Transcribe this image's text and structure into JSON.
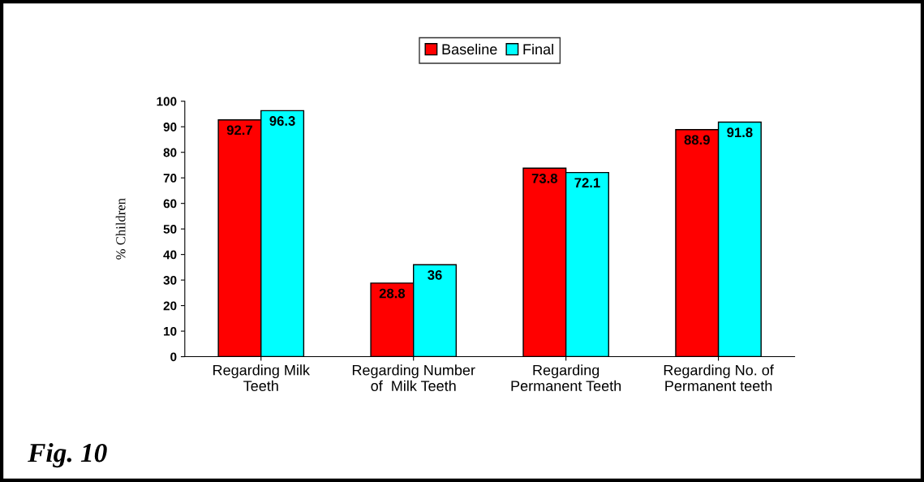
{
  "chart_data": {
    "type": "bar",
    "ylabel": "% Children",
    "categories": [
      "Regarding Milk\nTeeth",
      "Regarding Number\nof  Milk Teeth",
      "Regarding\nPermanent Teeth",
      "Regarding No. of\nPermanent teeth"
    ],
    "series": [
      {
        "name": "Baseline",
        "color": "#ff0000",
        "values": [
          92.7,
          28.8,
          73.8,
          88.9
        ]
      },
      {
        "name": "Final",
        "color": "#00ffff",
        "values": [
          96.3,
          36,
          72.1,
          91.8
        ]
      }
    ],
    "ylim": [
      0,
      100
    ],
    "yticks": [
      0,
      10,
      20,
      30,
      40,
      50,
      60,
      70,
      80,
      90,
      100
    ],
    "grid": false,
    "legend": "top",
    "data_labels": true,
    "annotations": [
      "Fig. 10"
    ]
  }
}
